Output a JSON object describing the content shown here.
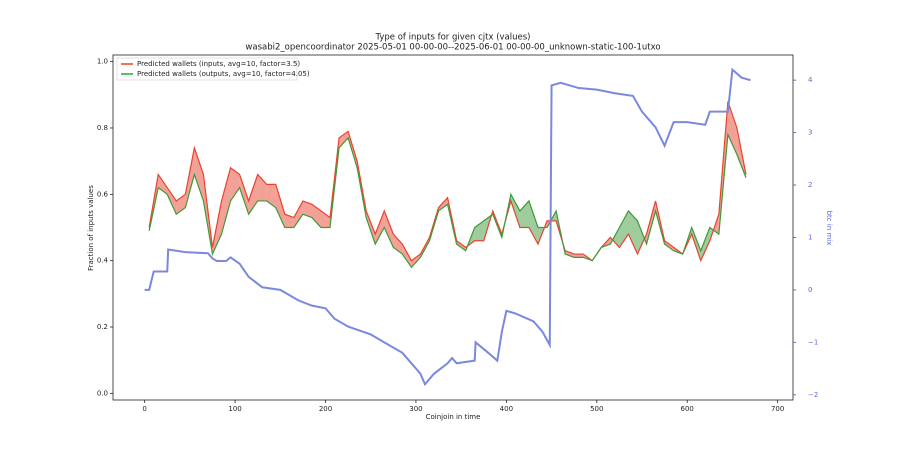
{
  "chart_data": {
    "type": "line",
    "title": "Type of inputs for given cjtx (values)",
    "subtitle": "wasabi2_opencoordinator 2025-05-01 00-00-00--2025-06-01 00-00-00_unknown-static-100-1utxo",
    "x_label": "Coinjoin in time",
    "y_label": "Fraction of inputs values",
    "y2_label": "btc in mix",
    "x": [
      5,
      15,
      25,
      35,
      45,
      55,
      65,
      75,
      85,
      95,
      105,
      115,
      125,
      135,
      145,
      155,
      165,
      175,
      185,
      195,
      205,
      215,
      225,
      235,
      245,
      255,
      265,
      275,
      285,
      295,
      305,
      315,
      325,
      335,
      345,
      355,
      365,
      375,
      385,
      395,
      405,
      415,
      425,
      435,
      445,
      455,
      465,
      475,
      485,
      495,
      505,
      515,
      525,
      535,
      545,
      555,
      565,
      575,
      585,
      595,
      605,
      615,
      625,
      635,
      645,
      655,
      665
    ],
    "series": [
      {
        "name": "Predicted wallets (inputs, avg=10, factor=3.5)",
        "color": "#e8432f",
        "values": [
          0.5,
          0.66,
          0.62,
          0.58,
          0.6,
          0.74,
          0.66,
          0.44,
          0.58,
          0.68,
          0.66,
          0.58,
          0.66,
          0.63,
          0.63,
          0.54,
          0.53,
          0.58,
          0.57,
          0.55,
          0.53,
          0.77,
          0.79,
          0.7,
          0.55,
          0.48,
          0.55,
          0.48,
          0.45,
          0.4,
          0.42,
          0.47,
          0.56,
          0.59,
          0.46,
          0.44,
          0.46,
          0.46,
          0.55,
          0.48,
          0.58,
          0.5,
          0.5,
          0.45,
          0.52,
          0.52,
          0.43,
          0.42,
          0.42,
          0.4,
          0.44,
          0.47,
          0.44,
          0.48,
          0.42,
          0.48,
          0.58,
          0.46,
          0.44,
          0.42,
          0.48,
          0.4,
          0.46,
          0.54,
          0.88,
          0.8,
          0.66
        ]
      },
      {
        "name": "Predicted wallets (outputs, avg=10, factor=4.05)",
        "color": "#3f9a3a",
        "values": [
          0.49,
          0.62,
          0.6,
          0.54,
          0.56,
          0.66,
          0.58,
          0.42,
          0.48,
          0.58,
          0.62,
          0.54,
          0.58,
          0.58,
          0.56,
          0.5,
          0.5,
          0.54,
          0.53,
          0.5,
          0.5,
          0.74,
          0.77,
          0.68,
          0.53,
          0.45,
          0.5,
          0.44,
          0.42,
          0.38,
          0.41,
          0.46,
          0.55,
          0.57,
          0.45,
          0.43,
          0.5,
          0.52,
          0.54,
          0.47,
          0.6,
          0.55,
          0.58,
          0.5,
          0.5,
          0.55,
          0.42,
          0.41,
          0.41,
          0.4,
          0.44,
          0.45,
          0.5,
          0.55,
          0.52,
          0.45,
          0.55,
          0.45,
          0.43,
          0.42,
          0.5,
          0.43,
          0.5,
          0.48,
          0.78,
          0.72,
          0.65
        ]
      },
      {
        "axis": "y2",
        "color": "#7a88dd",
        "x": [
          0,
          5,
          10,
          25,
          26,
          45,
          70,
          75,
          80,
          90,
          95,
          105,
          115,
          130,
          150,
          170,
          185,
          200,
          210,
          225,
          250,
          265,
          285,
          295,
          305,
          310,
          320,
          335,
          340,
          345,
          365,
          366,
          380,
          390,
          395,
          400,
          410,
          430,
          440,
          448,
          450,
          460,
          480,
          500,
          520,
          540,
          550,
          565,
          575,
          585,
          600,
          620,
          625,
          645,
          650,
          660,
          670
        ],
        "values": [
          0,
          0,
          0.35,
          0.35,
          0.77,
          0.72,
          0.7,
          0.6,
          0.55,
          0.55,
          0.62,
          0.5,
          0.25,
          0.05,
          0,
          -0.2,
          -0.3,
          -0.35,
          -0.55,
          -0.7,
          -0.85,
          -1.0,
          -1.2,
          -1.4,
          -1.6,
          -1.8,
          -1.6,
          -1.4,
          -1.3,
          -1.4,
          -1.35,
          -1.0,
          -1.2,
          -1.35,
          -0.8,
          -0.4,
          -0.45,
          -0.6,
          -0.8,
          -1.05,
          3.9,
          3.95,
          3.85,
          3.82,
          3.75,
          3.7,
          3.4,
          3.1,
          2.75,
          3.2,
          3.2,
          3.15,
          3.4,
          3.4,
          4.2,
          4.05,
          4.0
        ]
      }
    ],
    "xlim": [
      -35,
      717
    ],
    "xticks": [
      0,
      100,
      200,
      300,
      400,
      500,
      600,
      700
    ],
    "ylim": [
      -0.02,
      1.02
    ],
    "yticks": [
      {
        "value": 0,
        "label": "0.0"
      },
      0.2,
      0.4,
      0.6,
      0.8,
      {
        "value": 1,
        "label": "1.0"
      }
    ],
    "y2lim": [
      -2.1,
      4.48
    ],
    "y2ticks": [
      {
        "value": -2,
        "label": "−2"
      },
      {
        "value": -1,
        "label": "−1"
      },
      0,
      1,
      2,
      3,
      4
    ],
    "legend": "upper left"
  }
}
